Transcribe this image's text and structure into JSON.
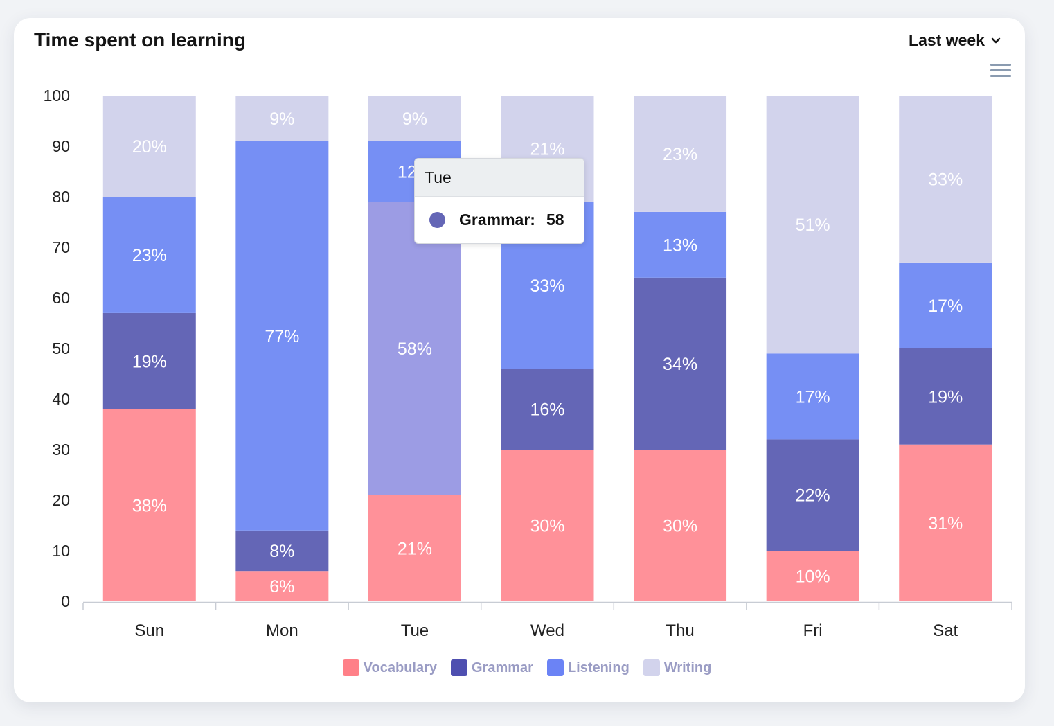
{
  "header": {
    "title": "Time spent on learning",
    "range_label": "Last week"
  },
  "colors": {
    "vocabulary": "#ff9199",
    "grammar": "#6466b6",
    "listening": "#768ff4",
    "writing": "#d2d3ec",
    "highlight": "#9c9ce4"
  },
  "tooltip": {
    "title": "Tue",
    "series": "Grammar:",
    "value": "58"
  },
  "chart_data": {
    "type": "bar",
    "stacked": true,
    "categories": [
      "Sun",
      "Mon",
      "Tue",
      "Wed",
      "Thu",
      "Fri",
      "Sat"
    ],
    "ylim": [
      0,
      100
    ],
    "yticks": [
      0,
      10,
      20,
      30,
      40,
      50,
      60,
      70,
      80,
      90,
      100
    ],
    "legend_position": "bottom",
    "grid": false,
    "highlighted": {
      "category": "Tue",
      "series": "Grammar"
    },
    "series": [
      {
        "name": "Vocabulary",
        "values": [
          38,
          6,
          21,
          30,
          30,
          10,
          31
        ],
        "labels": [
          "38%",
          "6%",
          "21%",
          "30%",
          "30%",
          "10%",
          "31%"
        ]
      },
      {
        "name": "Grammar",
        "values": [
          19,
          8,
          58,
          16,
          34,
          22,
          19
        ],
        "labels": [
          "19%",
          "8%",
          "58%",
          "16%",
          "34%",
          "22%",
          "19%"
        ]
      },
      {
        "name": "Listening",
        "values": [
          23,
          77,
          12,
          33,
          13,
          17,
          17
        ],
        "labels": [
          "23%",
          "77%",
          "12%",
          "33%",
          "13%",
          "17%",
          "17%"
        ]
      },
      {
        "name": "Writing",
        "values": [
          20,
          9,
          9,
          21,
          23,
          51,
          33
        ],
        "labels": [
          "20%",
          "9%",
          "9%",
          "21%",
          "23%",
          "51%",
          "33%"
        ]
      }
    ]
  }
}
